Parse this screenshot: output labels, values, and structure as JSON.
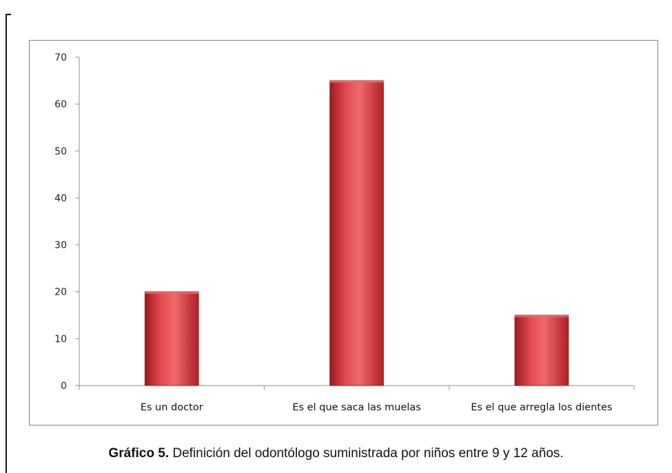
{
  "caption": {
    "label": "Gráfico 5.",
    "text": "Definición del odontólogo suministrada por niños  entre 9 y 12 años."
  },
  "colors": {
    "bar": "#c8262c",
    "bar_highlight": "#ec6a6a",
    "axis": "#8c8c8c"
  },
  "chart_data": {
    "type": "bar",
    "title": "",
    "xlabel": "",
    "ylabel": "",
    "categories": [
      "Es un doctor",
      "Es el que saca las muelas",
      "Es el que arregla los dientes"
    ],
    "values": [
      20,
      65,
      15
    ],
    "ylim": [
      0,
      70
    ],
    "yticks": [
      0,
      10,
      20,
      30,
      40,
      50,
      60,
      70
    ],
    "grid": false,
    "legend": "none"
  }
}
